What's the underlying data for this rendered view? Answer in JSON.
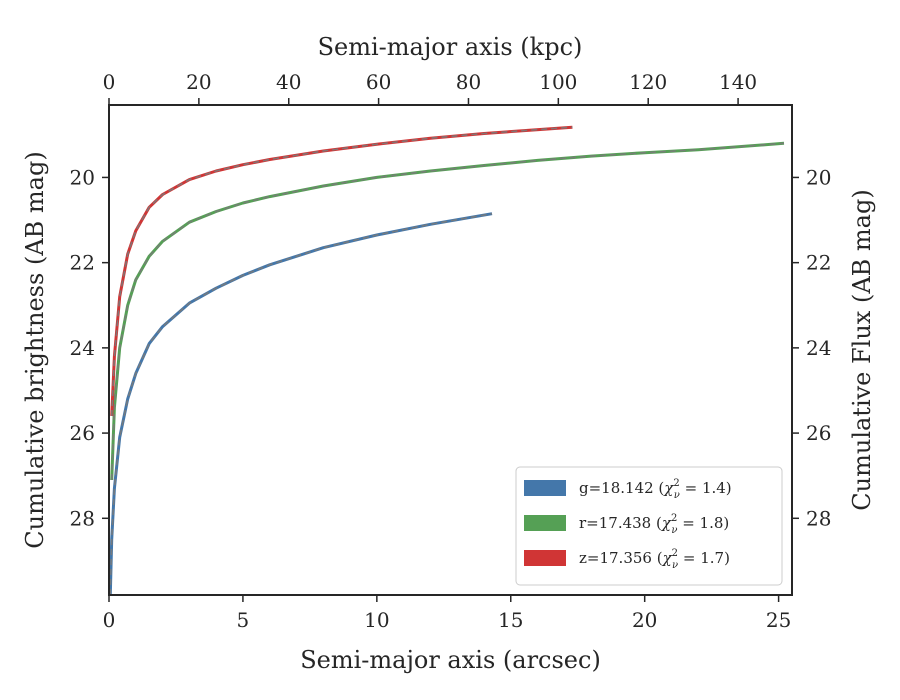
{
  "chart_data": {
    "type": "line",
    "xlabel": "Semi-major axis (arcsec)",
    "x2label": "Semi-major axis (kpc)",
    "ylabel": "Cumulative brightness (AB mag)",
    "y2label": "Cumulative Flux (AB mag)",
    "xlim": [
      0,
      25.5
    ],
    "x2lim": [
      0,
      152
    ],
    "ylim": [
      29.8,
      18.3
    ],
    "y_inverted": true,
    "xticks": [
      0,
      5,
      10,
      15,
      20,
      25
    ],
    "xtick_labels": [
      "0",
      "5",
      "10",
      "15",
      "20",
      "25"
    ],
    "x2ticks": [
      0,
      20,
      40,
      60,
      80,
      100,
      120,
      140
    ],
    "x2tick_labels": [
      "0",
      "20",
      "40",
      "60",
      "80",
      "100",
      "120",
      "140"
    ],
    "yticks": [
      20,
      22,
      24,
      26,
      28
    ],
    "ytick_labels": [
      "20",
      "22",
      "24",
      "26",
      "28"
    ],
    "grid": false,
    "legend_position": "lower-right",
    "series": [
      {
        "name": "g=18.142",
        "chi2": "1.4",
        "color": "#4477aa",
        "x": [
          0.05,
          0.1,
          0.2,
          0.4,
          0.7,
          1.0,
          1.5,
          2.0,
          3.0,
          4.0,
          5.0,
          6.0,
          8.0,
          10.0,
          12.0,
          14.3
        ],
        "y": [
          29.8,
          28.5,
          27.3,
          26.1,
          25.2,
          24.6,
          23.9,
          23.5,
          22.95,
          22.6,
          22.3,
          22.05,
          21.65,
          21.35,
          21.1,
          20.85
        ]
      },
      {
        "name": "r=17.438",
        "chi2": "1.8",
        "color": "#55a055",
        "x": [
          0.1,
          0.2,
          0.4,
          0.7,
          1.0,
          1.5,
          2.0,
          3.0,
          4.0,
          5.0,
          6.0,
          8.0,
          10.0,
          12.0,
          14.0,
          16.0,
          18.0,
          20.0,
          22.0,
          25.2
        ],
        "y": [
          27.1,
          25.4,
          24.0,
          23.0,
          22.4,
          21.85,
          21.5,
          21.05,
          20.8,
          20.6,
          20.45,
          20.2,
          20.0,
          19.85,
          19.72,
          19.6,
          19.5,
          19.42,
          19.35,
          19.2
        ]
      },
      {
        "name": "z=17.356",
        "chi2": "1.7",
        "color": "#d03535",
        "x": [
          0.1,
          0.2,
          0.4,
          0.7,
          1.0,
          1.5,
          2.0,
          3.0,
          4.0,
          5.0,
          6.0,
          8.0,
          10.0,
          12.0,
          14.0,
          15.5,
          17.3
        ],
        "y": [
          25.6,
          24.2,
          22.8,
          21.8,
          21.25,
          20.7,
          20.4,
          20.05,
          19.85,
          19.7,
          19.58,
          19.38,
          19.22,
          19.08,
          18.97,
          18.9,
          18.82
        ]
      }
    ]
  }
}
